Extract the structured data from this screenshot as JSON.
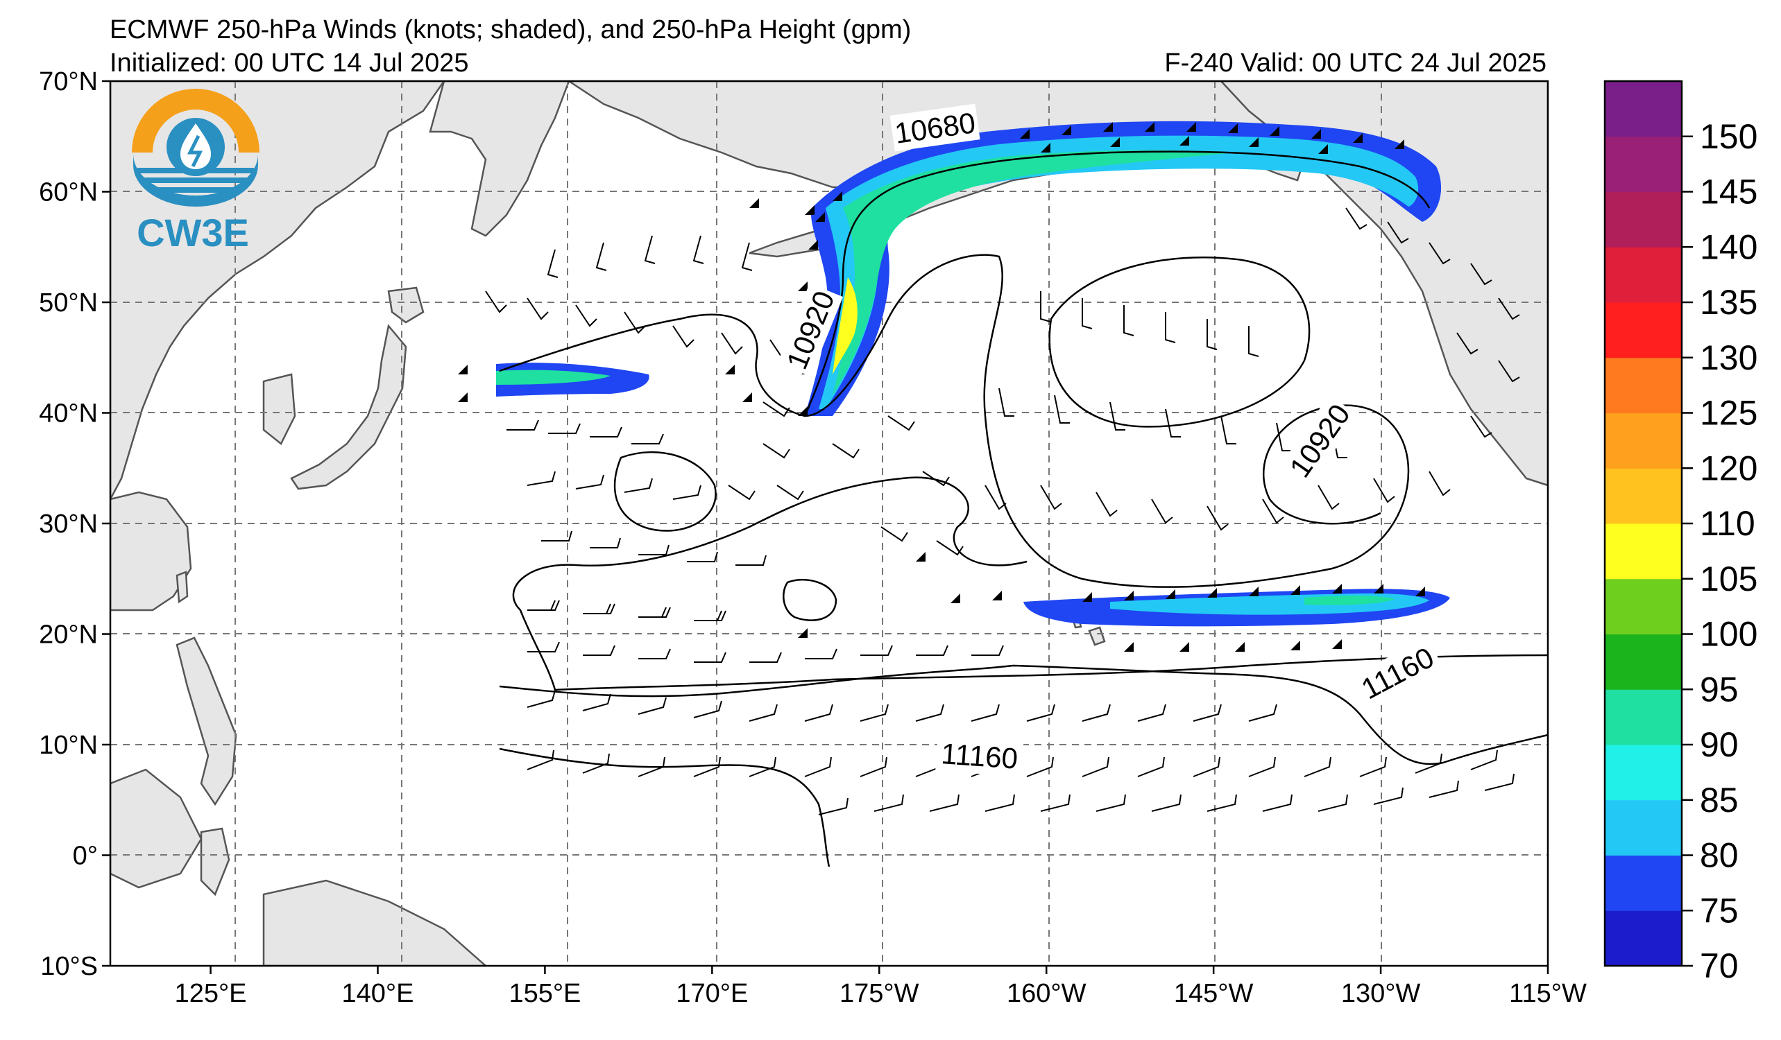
{
  "header": {
    "title": "ECMWF 250-hPa Winds (knots; shaded), and 250-hPa Height (gpm)",
    "initialized": "Initialized: 00 UTC 14 Jul 2025",
    "valid": "F-240  Valid: 00 UTC 24 Jul 2025"
  },
  "logo": {
    "text": "CW3E",
    "icon": "water-drop-sun-logo-icon",
    "colors": {
      "sun": "#f5a01a",
      "sea": "#2a8fc1"
    }
  },
  "map": {
    "lon_labels": [
      "125°E",
      "140°E",
      "155°E",
      "170°E",
      "175°W",
      "160°W",
      "145°W",
      "130°W",
      "115°W"
    ],
    "lat_labels": [
      "70°N",
      "60°N",
      "50°N",
      "40°N",
      "30°N",
      "20°N",
      "10°N",
      "0°",
      "10°S"
    ],
    "lon_values": [
      125,
      140,
      155,
      170,
      185,
      200,
      215,
      230,
      245
    ],
    "lat_values": [
      70,
      60,
      50,
      40,
      30,
      20,
      10,
      0,
      -10
    ],
    "extent": {
      "lon_min": 116,
      "lon_max": 245,
      "lat_min": -10,
      "lat_max": 70
    },
    "contour_labels": [
      {
        "text": "10680",
        "lon": 190,
        "lat": 65.8,
        "rotation": -8
      },
      {
        "text": "10920",
        "lon": 178.8,
        "lat": 47.5,
        "rotation": -68
      },
      {
        "text": "10920",
        "lon": 224.5,
        "lat": 37.5,
        "rotation": -55
      },
      {
        "text": "11160",
        "lon": 231.5,
        "lat": 16.5,
        "rotation": -28
      },
      {
        "text": "11160",
        "lon": 194,
        "lat": 9,
        "rotation": 4
      }
    ],
    "land_color": "#e6e6e6",
    "ocean_color": "#ffffff"
  },
  "colorbar": {
    "ticks": [
      "70",
      "75",
      "80",
      "85",
      "90",
      "95",
      "100",
      "105",
      "110",
      "120",
      "125",
      "130",
      "135",
      "140",
      "145",
      "150"
    ],
    "colors": [
      "#1c1ccc",
      "#1f46f2",
      "#24c8f5",
      "#20f0e8",
      "#1fe0a0",
      "#1cb41c",
      "#6fcf1f",
      "#ffff1f",
      "#ffc21f",
      "#ffa01f",
      "#ff7a1f",
      "#ff1f1f",
      "#e01f3a",
      "#b01f5a",
      "#9a1f76",
      "#7a1f8a"
    ],
    "units": "knots"
  }
}
